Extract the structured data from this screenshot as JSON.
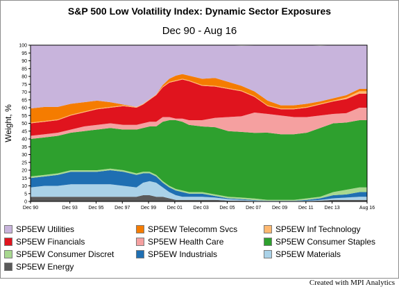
{
  "header": {
    "title": "S&P 500 Low Volatility Index: Dynamic Sector Exposures",
    "subtitle": "Dec 90 - Aug 16"
  },
  "footer": {
    "credit": "Created with MPI Analytics"
  },
  "chart_data": {
    "type": "area",
    "stacked": true,
    "title": "S&P 500 Low Volatility Index: Dynamic Sector Exposures",
    "subtitle": "Dec 90 - Aug 16",
    "ylabel": "Weight, %",
    "xlabel": "",
    "ylim": [
      0,
      100
    ],
    "yticks": [
      0,
      5,
      10,
      15,
      20,
      25,
      30,
      35,
      40,
      45,
      50,
      55,
      60,
      65,
      70,
      75,
      80,
      85,
      90,
      95,
      100
    ],
    "xlim": [
      1990.917,
      2016.583
    ],
    "xticks": [
      {
        "x": 1990.917,
        "label": "Dec 90"
      },
      {
        "x": 1993.917,
        "label": "Dec 93"
      },
      {
        "x": 1995.917,
        "label": "Dec 95"
      },
      {
        "x": 1997.917,
        "label": "Dec 97"
      },
      {
        "x": 1999.917,
        "label": "Dec 99"
      },
      {
        "x": 2001.917,
        "label": "Dec 01"
      },
      {
        "x": 2003.917,
        "label": "Dec 03"
      },
      {
        "x": 2005.917,
        "label": "Dec 05"
      },
      {
        "x": 2007.917,
        "label": "Dec 07"
      },
      {
        "x": 2009.917,
        "label": "Dec 09"
      },
      {
        "x": 2011.917,
        "label": "Dec 11"
      },
      {
        "x": 2013.917,
        "label": "Dec 13"
      },
      {
        "x": 2016.583,
        "label": "Aug 16"
      }
    ],
    "grid": false,
    "legend_position": "bottom",
    "x": [
      1990.917,
      1992.0,
      1993.0,
      1994.0,
      1995.0,
      1996.0,
      1997.0,
      1998.0,
      1999.0,
      1999.5,
      2000.0,
      2000.5,
      2001.0,
      2001.5,
      2002.0,
      2002.5,
      2003.0,
      2004.0,
      2005.0,
      2006.0,
      2007.0,
      2008.0,
      2009.0,
      2010.0,
      2011.0,
      2012.0,
      2013.0,
      2014.0,
      2015.0,
      2016.0,
      2016.583
    ],
    "series": [
      {
        "name": "SP5EW Energy",
        "color": "#5a5a5a",
        "values": [
          3,
          3,
          3,
          3,
          3,
          3,
          3,
          3,
          3,
          4,
          4,
          3,
          3,
          2,
          1,
          1,
          1,
          1,
          1,
          0.5,
          0.5,
          0.3,
          0.2,
          0.2,
          0.2,
          0.2,
          0.5,
          1,
          1,
          1,
          1
        ]
      },
      {
        "name": "SP5EW Materials",
        "color": "#aad2e8",
        "values": [
          6,
          7,
          7,
          8,
          8,
          8,
          8,
          7,
          6,
          8,
          9,
          9,
          6,
          4,
          3,
          2,
          2,
          2,
          1.5,
          1,
          0.5,
          0.3,
          0.3,
          0.3,
          0.3,
          0.3,
          0.5,
          1,
          1.5,
          2,
          2
        ]
      },
      {
        "name": "SP5EW Industrials",
        "color": "#1f6fb2",
        "values": [
          6,
          6,
          7,
          8,
          8,
          8,
          9,
          9,
          8,
          6,
          5,
          4,
          3,
          3,
          3,
          3,
          2,
          2,
          1,
          0.5,
          0.5,
          0.3,
          0,
          0,
          0,
          0.5,
          1,
          2,
          2,
          3,
          3
        ]
      },
      {
        "name": "SP5EW Consumer Discret",
        "color": "#a8d890",
        "values": [
          1,
          1,
          1,
          1,
          1,
          1,
          1,
          1,
          1,
          1,
          1,
          1,
          1,
          1,
          1,
          1,
          1,
          1,
          1,
          1,
          1,
          1,
          0.5,
          0.5,
          0.5,
          1,
          1,
          2,
          3,
          3,
          3
        ]
      },
      {
        "name": "SP5EW Consumer Staples",
        "color": "#2ea02e",
        "values": [
          24,
          24,
          24,
          24,
          25,
          26,
          26,
          26,
          28,
          28,
          29,
          31,
          38,
          42,
          44,
          44,
          43,
          42,
          43,
          42,
          42,
          42,
          43,
          42,
          42,
          42,
          44,
          44,
          43,
          43,
          43
        ]
      },
      {
        "name": "SP5EW Health Care",
        "color": "#f5a0a0",
        "values": [
          2,
          2,
          2,
          2,
          3,
          3,
          3,
          3,
          3,
          3,
          3,
          3,
          3,
          2,
          1,
          2,
          3,
          4,
          6,
          9,
          10,
          13,
          12,
          12,
          11,
          10,
          8,
          6,
          6,
          8,
          8
        ]
      },
      {
        "name": "SP5EW Financials",
        "color": "#e0141e",
        "values": [
          8,
          8,
          8,
          9,
          9,
          10,
          10,
          12,
          11,
          12,
          14,
          17,
          19,
          22,
          24,
          25,
          25,
          22,
          20,
          18,
          16,
          10,
          5,
          4,
          5,
          6,
          7,
          8,
          9,
          9,
          9
        ]
      },
      {
        "name": "SP5EW Inf Technology",
        "color": "#ffb870",
        "values": [
          0.5,
          0.5,
          0.5,
          0.5,
          0.5,
          0.5,
          0.5,
          0.5,
          0.5,
          0.5,
          0.5,
          0.5,
          0.5,
          0.5,
          0.5,
          0.5,
          0.5,
          0.5,
          0.5,
          0.5,
          0.5,
          0.5,
          0.5,
          0.5,
          0.5,
          0.5,
          0.5,
          0.5,
          1,
          1.5,
          1.5
        ]
      },
      {
        "name": "SP5EW Telecomm Svcs",
        "color": "#f57c00",
        "values": [
          9,
          9,
          8,
          7,
          6,
          5,
          3,
          0.5,
          0,
          0,
          0,
          0,
          1,
          2,
          3,
          3,
          3,
          4,
          5,
          4,
          3,
          3,
          3,
          2,
          2,
          2,
          1.5,
          1.5,
          1.5,
          1.5,
          1.5
        ]
      },
      {
        "name": "SP5EW Utilities",
        "color": "#c8b4dc",
        "values": [
          40.5,
          39.5,
          39.5,
          37.5,
          36.5,
          35.5,
          36.5,
          38,
          39.5,
          37.5,
          34.5,
          31.5,
          25.5,
          21.5,
          19.5,
          18.5,
          19.5,
          21.5,
          21,
          23.5,
          25.5,
          29.4,
          35.5,
          38.5,
          38.5,
          37.5,
          35.5,
          34,
          32,
          29,
          29
        ]
      }
    ]
  }
}
